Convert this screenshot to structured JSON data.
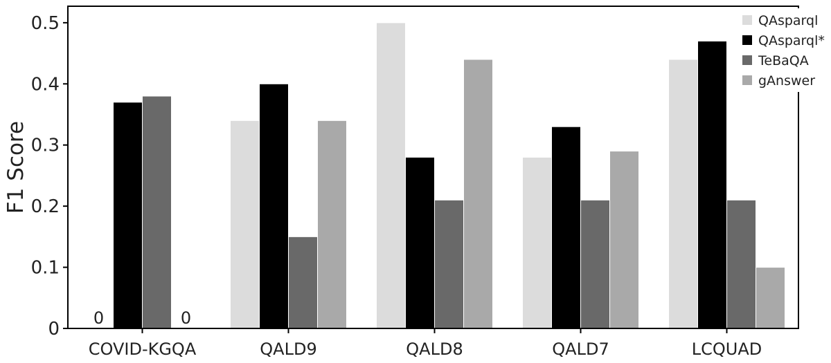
{
  "chart_data": {
    "type": "bar",
    "title": "",
    "xlabel": "",
    "ylabel": "F1 Score",
    "ylim": [
      0,
      0.527
    ],
    "yticks": [
      0,
      0.1,
      0.2,
      0.3,
      0.4,
      0.5
    ],
    "ytick_labels": [
      "0",
      "0.1",
      "0.2",
      "0.3",
      "0.4",
      "0.5"
    ],
    "categories": [
      "COVID-KGQA",
      "QALD9",
      "QALD8",
      "QALD7",
      "LCQUAD"
    ],
    "series": [
      {
        "name": "QAsparql",
        "color": "#dcdcdc",
        "values": [
          0,
          0.34,
          0.5,
          0.28,
          0.44
        ]
      },
      {
        "name": "QAsparql*",
        "color": "#000000",
        "values": [
          0.37,
          0.4,
          0.28,
          0.33,
          0.47
        ]
      },
      {
        "name": "TeBaQA",
        "color": "#696969",
        "values": [
          0.38,
          0.15,
          0.21,
          0.21,
          0.21
        ]
      },
      {
        "name": "gAnswer",
        "color": "#a9a9a9",
        "values": [
          0,
          0.34,
          0.44,
          0.29,
          0.1
        ]
      }
    ],
    "annotations": [
      {
        "category": "COVID-KGQA",
        "series": "QAsparql",
        "text": "0"
      },
      {
        "category": "COVID-KGQA",
        "series": "gAnswer",
        "text": "0"
      }
    ],
    "legend_position": "top-right",
    "grid": false
  }
}
